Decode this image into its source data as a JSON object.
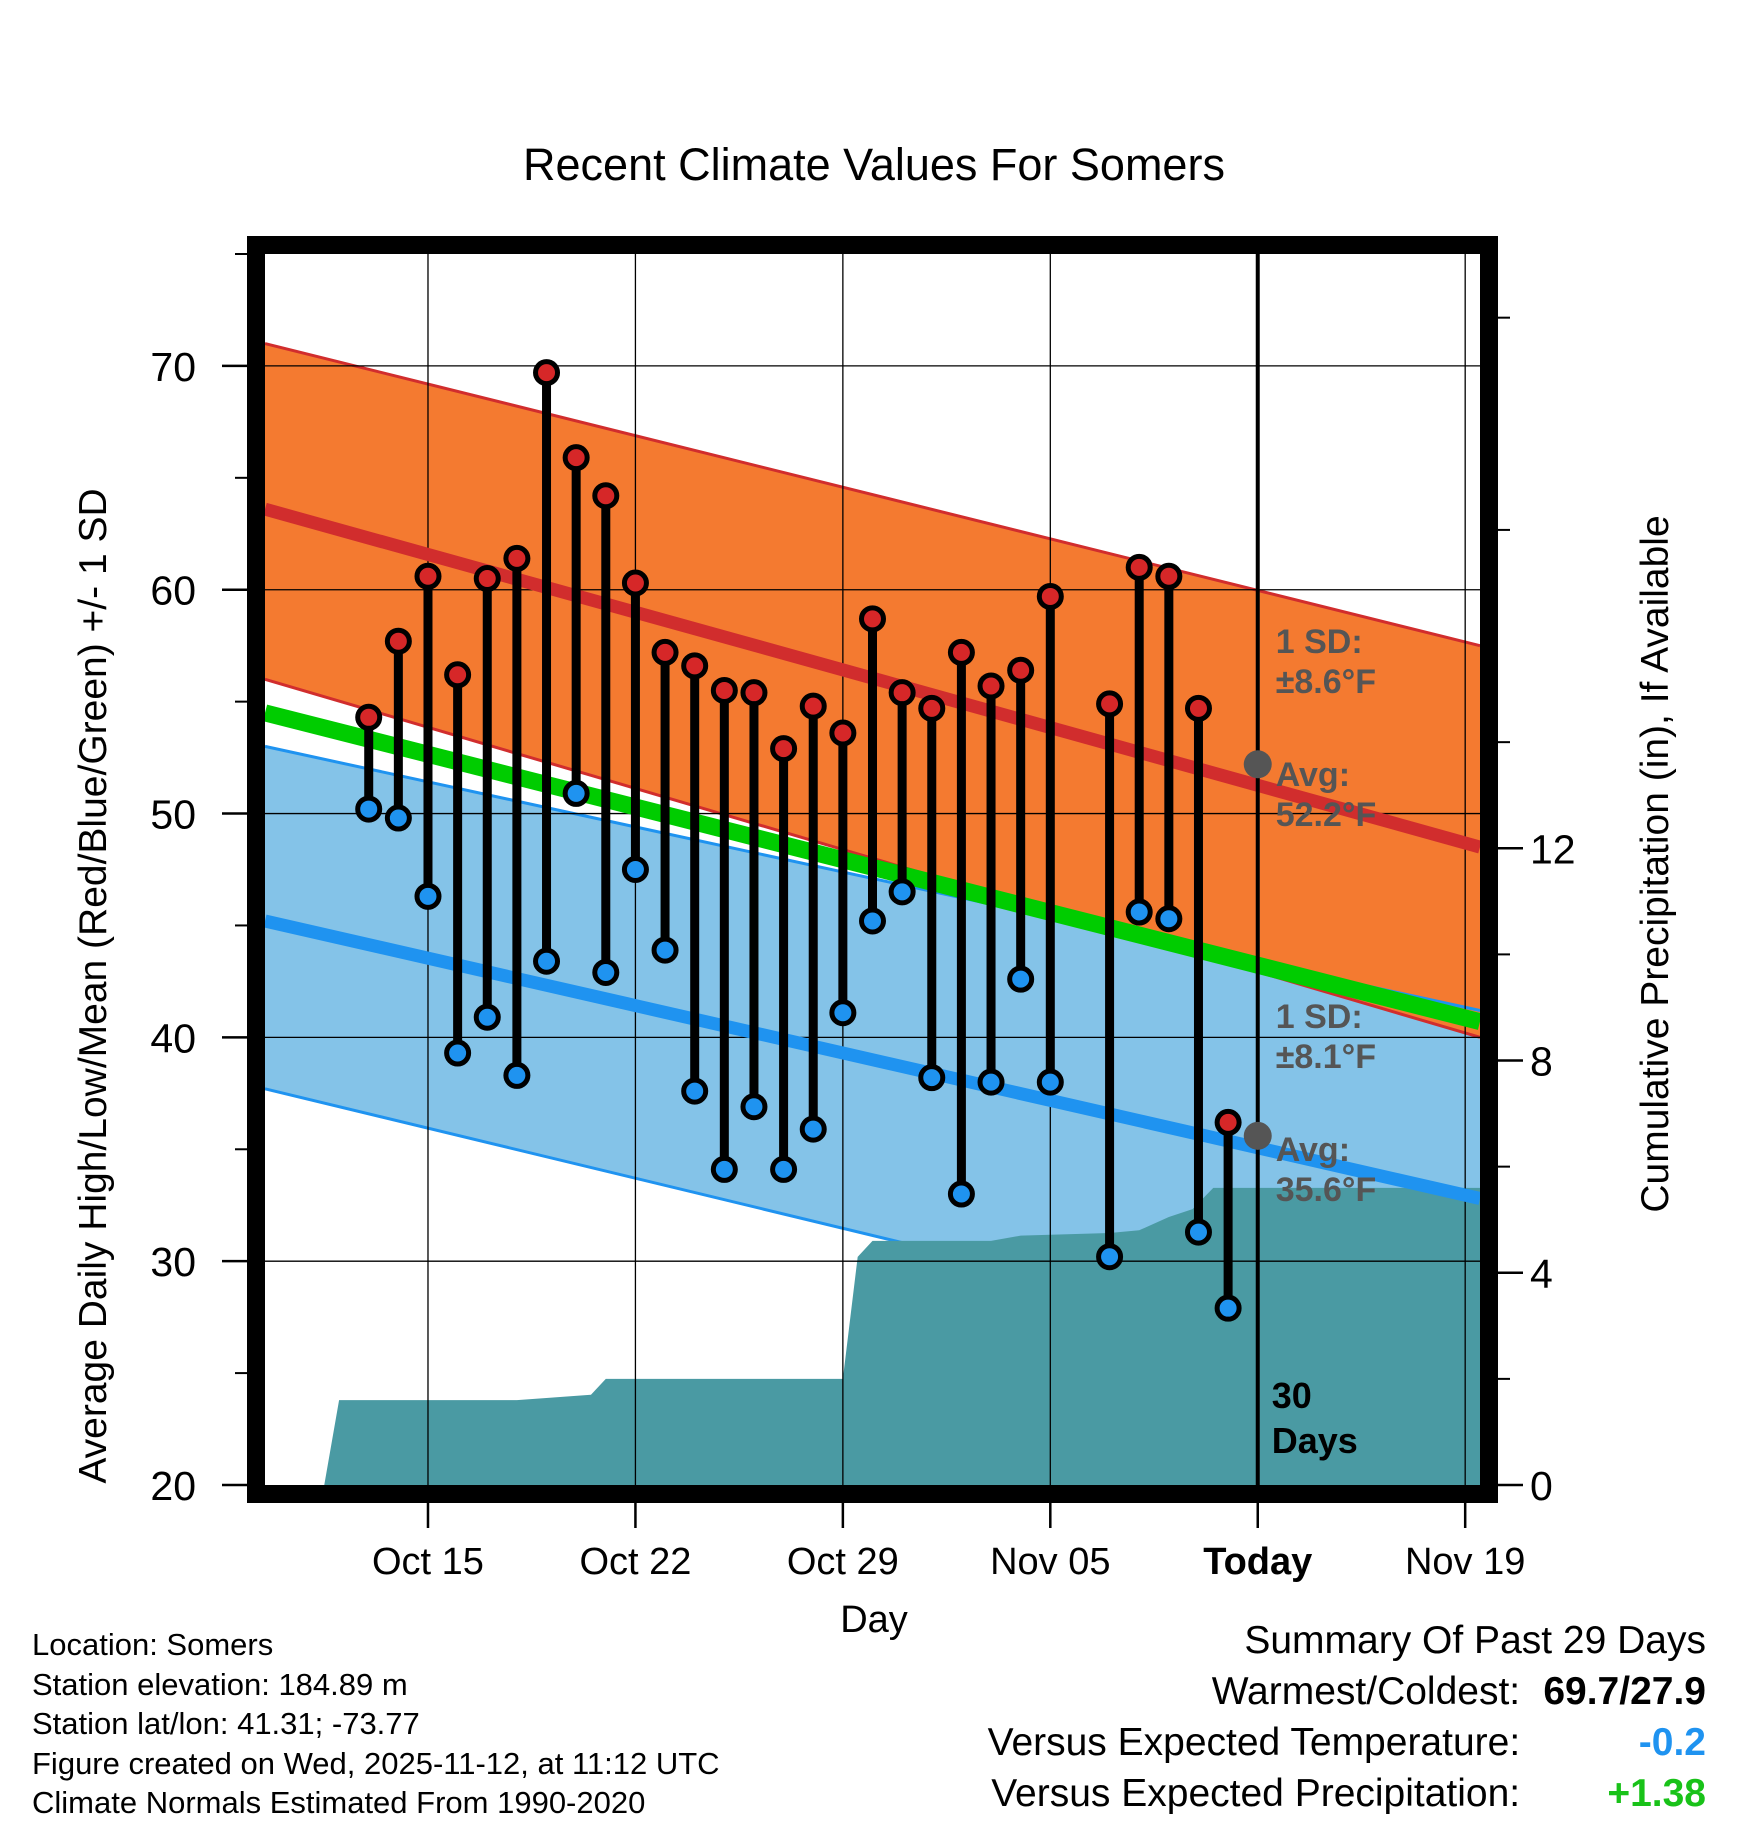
{
  "chart_data": {
    "type": "line",
    "title": "Recent Climate Values For Somers",
    "xlabel": "Day",
    "ylabel": "Average Daily High/Low/Mean (Red/Blue/Green) +/- 1 SD",
    "y2label": "Cumulative Precipitation (in), If Available",
    "x_range_days": [
      -33.5,
      7.5
    ],
    "x_ticks": [
      {
        "day": -28,
        "label": "Oct 15"
      },
      {
        "day": -21,
        "label": "Oct 22"
      },
      {
        "day": -14,
        "label": "Oct 29"
      },
      {
        "day": -7,
        "label": "Nov 05"
      },
      {
        "day": 0,
        "label": "Today"
      },
      {
        "day": 7,
        "label": "Nov 19"
      }
    ],
    "ylim": [
      20,
      75
    ],
    "y_ticks": [
      20,
      30,
      40,
      50,
      60,
      70
    ],
    "y2lim": [
      0,
      23.2
    ],
    "y2_ticks": [
      0,
      4,
      8,
      12
    ],
    "grid": true,
    "normals": {
      "high_mean": {
        "start": 63.6,
        "end": 48.5
      },
      "high_upper": {
        "start": 71.0,
        "end": 57.5
      },
      "high_lower": {
        "start": 56.0,
        "end": 40.0
      },
      "low_mean": {
        "start": 45.2,
        "end": 32.8
      },
      "low_upper": {
        "start": 53.0,
        "end": 41.2
      },
      "low_lower": {
        "start": 37.7,
        "end": 24.6
      },
      "mean_mean": {
        "start": 54.5,
        "end": 40.7
      }
    },
    "high_annotation": {
      "sd_label": "1 SD:",
      "sd_value": "±8.6°F",
      "avg_label": "Avg:",
      "avg_value": "52.2°F",
      "avg": 52.2
    },
    "low_annotation": {
      "sd_label": "1 SD:",
      "sd_value": "±8.1°F",
      "avg_label": "Avg:",
      "avg_value": "35.6°F",
      "avg": 35.6
    },
    "today_marker": {
      "line1": "30",
      "line2": "Days"
    },
    "series": [
      {
        "name": "Daily High",
        "color": "#d62728",
        "values": [
          54.3,
          57.7,
          60.6,
          56.2,
          60.5,
          61.4,
          69.7,
          65.9,
          64.2,
          60.3,
          57.2,
          56.6,
          55.5,
          55.4,
          52.9,
          54.8,
          53.6,
          58.7,
          55.4,
          54.7,
          57.2,
          55.7,
          56.4,
          59.7,
          null,
          54.9,
          61.0,
          60.6,
          54.7,
          36.2
        ]
      },
      {
        "name": "Daily Low",
        "color": "#1f93f0",
        "values": [
          50.2,
          49.8,
          46.3,
          39.3,
          40.9,
          38.3,
          43.4,
          50.9,
          42.9,
          47.5,
          43.9,
          37.6,
          34.1,
          36.9,
          34.1,
          35.9,
          41.1,
          45.2,
          46.5,
          38.2,
          33.0,
          38.0,
          42.6,
          38.0,
          null,
          30.2,
          45.6,
          45.3,
          31.3,
          27.9
        ]
      }
    ],
    "series_days": [
      -30,
      -29,
      -28,
      -27,
      -26,
      -25,
      -24,
      -23,
      -22,
      -21,
      -20,
      -19,
      -18,
      -17,
      -16,
      -15,
      -14,
      -13,
      -12,
      -11,
      -10,
      -9,
      -8,
      -7,
      -6,
      -5,
      -4,
      -3,
      -2,
      -1
    ],
    "precipitation": {
      "name": "Cumulative Precipitation",
      "days": [
        -31.5,
        -31.0,
        -30.5,
        -25.0,
        -22.5,
        -22.0,
        -21.5,
        -14.0,
        -13.5,
        -13.0,
        -12.0,
        -9.0,
        -8.0,
        -5.0,
        -4.0,
        -3.0,
        -2.2,
        -1.5,
        0,
        7.5
      ],
      "values": [
        0.0,
        1.6,
        1.6,
        1.6,
        1.7,
        2.0,
        2.0,
        2.0,
        4.3,
        4.6,
        4.6,
        4.6,
        4.7,
        4.75,
        4.8,
        5.05,
        5.2,
        5.6,
        5.6,
        5.6
      ]
    }
  },
  "info": {
    "location": "Location: Somers",
    "elevation": "Station elevation: 184.89 m",
    "latlon": "Station lat/lon: 41.31; -73.77",
    "created": "Figure created on Wed, 2025-11-12, at 11:12 UTC",
    "normals": "Climate Normals Estimated From 1990-2020"
  },
  "summary": {
    "title": "Summary Of Past 29 Days",
    "warmest_label": "Warmest/Coldest:",
    "warmest_value": "69.7/27.9",
    "temp_label": "Versus Expected Temperature:",
    "temp_value": "-0.2",
    "precip_label": "Versus Expected Precipitation:",
    "precip_value": "+1.38"
  },
  "colors": {
    "high_band": "#f47a30",
    "low_band": "#84c3e8",
    "high_line": "#d12d2d",
    "low_line": "#1f93f0",
    "mean_line": "#00cc00",
    "precip_fill": "#4a9aa3",
    "annotation_text": "#555555",
    "avg_dot": "#555555"
  }
}
